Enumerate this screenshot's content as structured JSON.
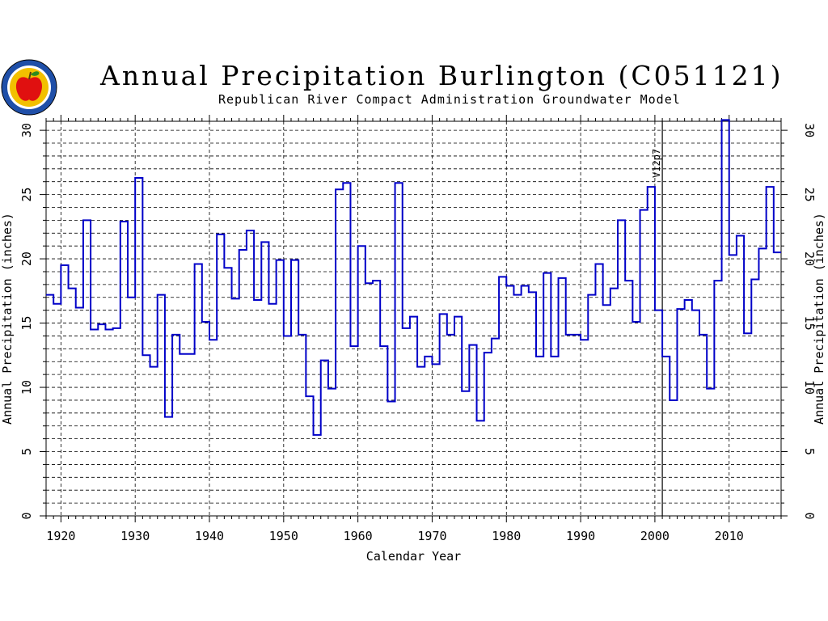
{
  "title": "Annual Precipitation Burlington (C051121)",
  "subtitle": "Republican River Compact Administration Groundwater Model",
  "logo": {
    "icon": "apple-seal-icon",
    "colors": {
      "ring": "#1f4fa8",
      "field": "#f2c000",
      "apple": "#e01010",
      "leaf": "#2e8b1e"
    }
  },
  "chart_data": {
    "type": "step",
    "title": "Annual Precipitation Burlington (C051121)",
    "subtitle": "Republican River Compact Administration Groundwater Model",
    "xlabel": "Calendar Year",
    "ylabel": "Annual Precipitation (inches)",
    "xlim": [
      1918,
      2017
    ],
    "ylim": [
      0,
      30.7
    ],
    "xticks": [
      1920,
      1930,
      1940,
      1950,
      1960,
      1970,
      1980,
      1990,
      2000,
      2010
    ],
    "yticks": [
      0,
      5,
      10,
      15,
      20,
      25,
      30
    ],
    "grid": true,
    "annotation": {
      "x": 2001,
      "label": "V12p7"
    },
    "series": [
      {
        "color": "#0000c8",
        "x": [
          1918,
          1919,
          1920,
          1921,
          1922,
          1923,
          1924,
          1925,
          1926,
          1927,
          1928,
          1929,
          1930,
          1931,
          1932,
          1933,
          1934,
          1935,
          1936,
          1937,
          1938,
          1939,
          1940,
          1941,
          1942,
          1943,
          1944,
          1945,
          1946,
          1947,
          1948,
          1949,
          1950,
          1951,
          1952,
          1953,
          1954,
          1955,
          1956,
          1957,
          1958,
          1959,
          1960,
          1961,
          1962,
          1963,
          1964,
          1965,
          1966,
          1967,
          1968,
          1969,
          1970,
          1971,
          1972,
          1973,
          1974,
          1975,
          1976,
          1977,
          1978,
          1979,
          1980,
          1981,
          1982,
          1983,
          1984,
          1985,
          1986,
          1987,
          1988,
          1989,
          1990,
          1991,
          1992,
          1993,
          1994,
          1995,
          1996,
          1997,
          1998,
          1999,
          2000,
          2001,
          2002,
          2003,
          2004,
          2005,
          2006,
          2007,
          2008,
          2009,
          2010,
          2011,
          2012,
          2013,
          2014,
          2015,
          2016
        ],
        "y": [
          17.2,
          16.5,
          19.5,
          17.7,
          16.2,
          23.0,
          14.5,
          14.9,
          14.5,
          14.6,
          22.9,
          17.0,
          26.3,
          12.5,
          11.6,
          17.2,
          7.7,
          14.1,
          12.6,
          12.6,
          19.6,
          15.1,
          13.7,
          21.9,
          19.3,
          16.9,
          20.7,
          22.2,
          16.8,
          21.3,
          16.5,
          19.9,
          14.0,
          19.9,
          14.1,
          9.3,
          6.3,
          12.1,
          9.9,
          25.4,
          25.9,
          13.2,
          21.0,
          18.1,
          18.3,
          13.2,
          8.9,
          25.9,
          14.6,
          15.5,
          11.6,
          12.4,
          11.8,
          15.7,
          14.1,
          15.5,
          9.7,
          13.3,
          7.4,
          12.7,
          13.8,
          18.6,
          17.9,
          17.2,
          17.9,
          17.4,
          12.4,
          18.9,
          12.4,
          18.5,
          14.1,
          14.1,
          13.7,
          17.2,
          19.6,
          16.4,
          17.7,
          23.0,
          18.3,
          15.1,
          23.8,
          25.6,
          16.0,
          12.4,
          9.0,
          16.1,
          16.8,
          16.0,
          14.1,
          9.9,
          18.3,
          30.8,
          20.3,
          21.8,
          14.2,
          18.4,
          20.8,
          25.6,
          20.5
        ]
      }
    ]
  }
}
